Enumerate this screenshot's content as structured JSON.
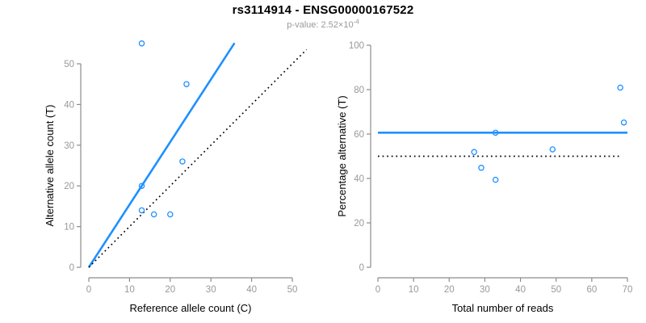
{
  "header": {
    "title": "rs3114914 - ENSG00000167522",
    "subtitle_base": "p-value: 2.52×10",
    "subtitle_exponent": "-4"
  },
  "colors": {
    "fit_line": "#1E90FF",
    "reference_line": "#000000",
    "marker": "#1E90FF",
    "axis": "#8c8c8c",
    "tick_label": "#999999",
    "title": "#000000",
    "subtitle": "#999999"
  },
  "chart_data": [
    {
      "type": "scatter",
      "panel": "left",
      "xlabel": "Reference allele count (C)",
      "ylabel": "Alternative allele count (T)",
      "xlim": [
        0,
        50
      ],
      "ylim": [
        0,
        50
      ],
      "xticks": [
        0,
        10,
        20,
        30,
        40,
        50
      ],
      "yticks": [
        0,
        10,
        20,
        30,
        40,
        50
      ],
      "marker": "open-circle",
      "points": [
        [
          13,
          55
        ],
        [
          24,
          45
        ],
        [
          23,
          26
        ],
        [
          13,
          20
        ],
        [
          13,
          14
        ],
        [
          16,
          13
        ],
        [
          20,
          13
        ]
      ],
      "lines": [
        {
          "name": "fit",
          "style": "solid",
          "color": "#1E90FF",
          "x1": 0,
          "y1": 0,
          "x2": 35.8,
          "y2": 55.1
        },
        {
          "name": "identity",
          "style": "dotted",
          "color": "#000000",
          "x1": 0,
          "y1": 0,
          "x2": 53.5,
          "y2": 53.5
        }
      ]
    },
    {
      "type": "scatter",
      "panel": "right",
      "xlabel": "Total number of reads",
      "ylabel": "Percentage alternative (T)",
      "xlim": [
        0,
        70
      ],
      "ylim": [
        0,
        100
      ],
      "xticks": [
        0,
        10,
        20,
        30,
        40,
        50,
        60,
        70
      ],
      "yticks": [
        0,
        20,
        40,
        60,
        80,
        100
      ],
      "marker": "open-circle",
      "points": [
        [
          68,
          80.9
        ],
        [
          69,
          65.2
        ],
        [
          33,
          60.6
        ],
        [
          49,
          53.1
        ],
        [
          27,
          51.9
        ],
        [
          29,
          44.8
        ],
        [
          33,
          39.4
        ]
      ],
      "lines": [
        {
          "name": "fit",
          "style": "solid",
          "color": "#1E90FF",
          "x1": 0,
          "y1": 60.6,
          "x2": 70,
          "y2": 60.6
        },
        {
          "name": "reference",
          "style": "dotted",
          "color": "#000000",
          "x1": 0,
          "y1": 50,
          "x2": 68.5,
          "y2": 50
        }
      ]
    }
  ]
}
